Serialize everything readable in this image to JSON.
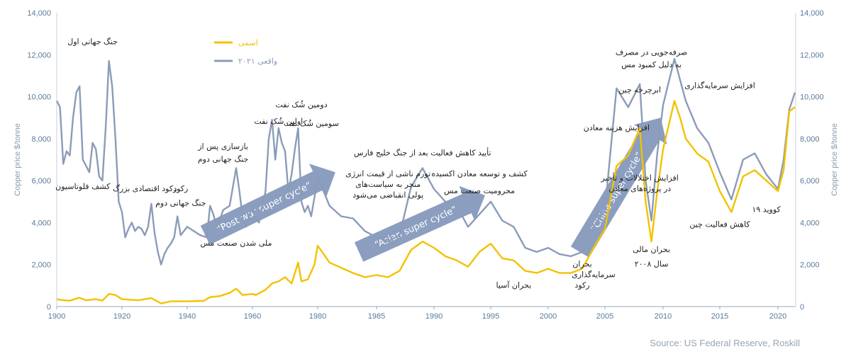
{
  "chart_data": {
    "type": "line",
    "ylabel_left": "Copper price $/tonne",
    "ylabel_right": "Copper price $/tonne",
    "xlim": [
      1900,
      2022
    ],
    "ylim": [
      0,
      14000
    ],
    "grid": false,
    "legend_position": "top-left",
    "x_ticks": [
      "1900",
      "1920",
      "1940",
      "1960",
      "1980",
      "1985",
      "1990",
      "1995",
      "2000",
      "2005",
      "2010",
      "2015",
      "2020"
    ],
    "y_ticks": [
      "0",
      "2,000",
      "4,000",
      "6,000",
      "8,000",
      "10,000",
      "12,000",
      "14,000"
    ],
    "series": [
      {
        "name": "اسمی",
        "color": "#f2c200",
        "points": [
          [
            1900,
            350
          ],
          [
            1902,
            300
          ],
          [
            1904,
            280
          ],
          [
            1906,
            380
          ],
          [
            1907,
            420
          ],
          [
            1909,
            300
          ],
          [
            1912,
            350
          ],
          [
            1914,
            280
          ],
          [
            1916,
            600
          ],
          [
            1918,
            550
          ],
          [
            1920,
            350
          ],
          [
            1925,
            300
          ],
          [
            1929,
            400
          ],
          [
            1932,
            150
          ],
          [
            1935,
            250
          ],
          [
            1940,
            250
          ],
          [
            1945,
            270
          ],
          [
            1947,
            450
          ],
          [
            1950,
            500
          ],
          [
            1953,
            650
          ],
          [
            1955,
            850
          ],
          [
            1957,
            550
          ],
          [
            1960,
            600
          ],
          [
            1961,
            550
          ],
          [
            1964,
            800
          ],
          [
            1966,
            1100
          ],
          [
            1968,
            1200
          ],
          [
            1970,
            1400
          ],
          [
            1972,
            1100
          ],
          [
            1973,
            1600
          ],
          [
            1974,
            2100
          ],
          [
            1975,
            1200
          ],
          [
            1977,
            1300
          ],
          [
            1979,
            2000
          ],
          [
            1980,
            2900
          ],
          [
            1981,
            2100
          ],
          [
            1983,
            1600
          ],
          [
            1984,
            1400
          ],
          [
            1985,
            1500
          ],
          [
            1986,
            1400
          ],
          [
            1987,
            1700
          ],
          [
            1988,
            2700
          ],
          [
            1989,
            3100
          ],
          [
            1990,
            2800
          ],
          [
            1991,
            2400
          ],
          [
            1992,
            2200
          ],
          [
            1993,
            1900
          ],
          [
            1994,
            2600
          ],
          [
            1995,
            3000
          ],
          [
            1996,
            2300
          ],
          [
            1997,
            2200
          ],
          [
            1998,
            1700
          ],
          [
            1999,
            1600
          ],
          [
            2000,
            1800
          ],
          [
            2001,
            1600
          ],
          [
            2002,
            1600
          ],
          [
            2003,
            1800
          ],
          [
            2004,
            2800
          ],
          [
            2005,
            3700
          ],
          [
            2006,
            6700
          ],
          [
            2007,
            7200
          ],
          [
            2008,
            8500
          ],
          [
            2008.5,
            5000
          ],
          [
            2009,
            3100
          ],
          [
            2009.5,
            5500
          ],
          [
            2010,
            7500
          ],
          [
            2011,
            9800
          ],
          [
            2011.5,
            9000
          ],
          [
            2012,
            8000
          ],
          [
            2013,
            7300
          ],
          [
            2014,
            6900
          ],
          [
            2015,
            5500
          ],
          [
            2016,
            4500
          ],
          [
            2017,
            6200
          ],
          [
            2018,
            6500
          ],
          [
            2019,
            6000
          ],
          [
            2020,
            5500
          ],
          [
            2020.5,
            6500
          ],
          [
            2021,
            9300
          ],
          [
            2021.5,
            9500
          ]
        ]
      },
      {
        "name": "واقعی ۲۰۲۱",
        "color": "#8b9cb8",
        "points": [
          [
            1900,
            9800
          ],
          [
            1901,
            9500
          ],
          [
            1902,
            6800
          ],
          [
            1903,
            7400
          ],
          [
            1904,
            7200
          ],
          [
            1905,
            9000
          ],
          [
            1906,
            10200
          ],
          [
            1907,
            10500
          ],
          [
            1908,
            7000
          ],
          [
            1910,
            6400
          ],
          [
            1911,
            7800
          ],
          [
            1912,
            7500
          ],
          [
            1913,
            6200
          ],
          [
            1914,
            6000
          ],
          [
            1915,
            8500
          ],
          [
            1916,
            11700
          ],
          [
            1917,
            10500
          ],
          [
            1918,
            8000
          ],
          [
            1919,
            5000
          ],
          [
            1920,
            4500
          ],
          [
            1921,
            3300
          ],
          [
            1922,
            3700
          ],
          [
            1923,
            4000
          ],
          [
            1924,
            3600
          ],
          [
            1925,
            3800
          ],
          [
            1926,
            3700
          ],
          [
            1927,
            3400
          ],
          [
            1928,
            3800
          ],
          [
            1929,
            4900
          ],
          [
            1930,
            3500
          ],
          [
            1931,
            2600
          ],
          [
            1932,
            2000
          ],
          [
            1933,
            2500
          ],
          [
            1934,
            2800
          ],
          [
            1935,
            3000
          ],
          [
            1936,
            3300
          ],
          [
            1937,
            4300
          ],
          [
            1938,
            3400
          ],
          [
            1940,
            3800
          ],
          [
            1942,
            3600
          ],
          [
            1944,
            3400
          ],
          [
            1946,
            3300
          ],
          [
            1947,
            4800
          ],
          [
            1948,
            4400
          ],
          [
            1949,
            3800
          ],
          [
            1950,
            4100
          ],
          [
            1951,
            4600
          ],
          [
            1953,
            4800
          ],
          [
            1955,
            6600
          ],
          [
            1956,
            5500
          ],
          [
            1957,
            4200
          ],
          [
            1958,
            3800
          ],
          [
            1960,
            4800
          ],
          [
            1961,
            4200
          ],
          [
            1962,
            4000
          ],
          [
            1964,
            5500
          ],
          [
            1965,
            8000
          ],
          [
            1966,
            8900
          ],
          [
            1967,
            7000
          ],
          [
            1968,
            8500
          ],
          [
            1969,
            7800
          ],
          [
            1970,
            7400
          ],
          [
            1971,
            5500
          ],
          [
            1972,
            6300
          ],
          [
            1973,
            7500
          ],
          [
            1974,
            8500
          ],
          [
            1975,
            5000
          ],
          [
            1976,
            4500
          ],
          [
            1977,
            4800
          ],
          [
            1978,
            4300
          ],
          [
            1979,
            5200
          ],
          [
            1980,
            6200
          ],
          [
            1981,
            4800
          ],
          [
            1982,
            4300
          ],
          [
            1983,
            4200
          ],
          [
            1984,
            3600
          ],
          [
            1985,
            3300
          ],
          [
            1986,
            3100
          ],
          [
            1987,
            3400
          ],
          [
            1988,
            5700
          ],
          [
            1989,
            6600
          ],
          [
            1990,
            5600
          ],
          [
            1991,
            5000
          ],
          [
            1992,
            4800
          ],
          [
            1993,
            3800
          ],
          [
            1994,
            4400
          ],
          [
            1995,
            5000
          ],
          [
            1996,
            4100
          ],
          [
            1997,
            3800
          ],
          [
            1998,
            2800
          ],
          [
            1999,
            2600
          ],
          [
            2000,
            2800
          ],
          [
            2001,
            2500
          ],
          [
            2002,
            2400
          ],
          [
            2003,
            2600
          ],
          [
            2004,
            3800
          ],
          [
            2005,
            4600
          ],
          [
            2006,
            10400
          ],
          [
            2007,
            9500
          ],
          [
            2008,
            10600
          ],
          [
            2008.5,
            6000
          ],
          [
            2009,
            4100
          ],
          [
            2009.5,
            7300
          ],
          [
            2010,
            9600
          ],
          [
            2011,
            11800
          ],
          [
            2011.5,
            10800
          ],
          [
            2012,
            9800
          ],
          [
            2013,
            8500
          ],
          [
            2014,
            7800
          ],
          [
            2015,
            6400
          ],
          [
            2016,
            5100
          ],
          [
            2017,
            7000
          ],
          [
            2018,
            7300
          ],
          [
            2019,
            6300
          ],
          [
            2020,
            5600
          ],
          [
            2020.5,
            7000
          ],
          [
            2021,
            9400
          ],
          [
            2021.5,
            10200
          ]
        ]
      }
    ],
    "annotations": [
      {
        "x": 1911,
        "y": 12500,
        "text": "جنگ جهانی اول"
      },
      {
        "x": 1908,
        "y": 5600,
        "text": "کشف فلوتاسیون"
      },
      {
        "x": 1927,
        "y": 5500,
        "text": "رکود اقتصادی بزرگ"
      },
      {
        "x": 1938,
        "y": 5500,
        "text": "رکود"
      },
      {
        "x": 1938,
        "y": 4800,
        "text": "جنگ جهانی دوم"
      },
      {
        "x": 1951,
        "y": 7500,
        "text": "بازسازی پس از"
      },
      {
        "x": 1951,
        "y": 6900,
        "text": "جنگ جهانی دوم"
      },
      {
        "x": 1955,
        "y": 2900,
        "text": "ملی شدن صنعت مس"
      },
      {
        "x": 1968,
        "y": 8700,
        "text": "اولین شُک نفت"
      },
      {
        "x": 1975,
        "y": 9500,
        "text": "دومین شُک نفت"
      },
      {
        "x": 1978,
        "y": 8600,
        "text": "سومین شُک نفت"
      },
      {
        "x": 1986,
        "y": 6200,
        "text": "تورم ناشی از قیمت انرژی"
      },
      {
        "x": 1986,
        "y": 5700,
        "text": "منجر به سیاست‌های"
      },
      {
        "x": 1986,
        "y": 5200,
        "text": "پولی انقباضی می‌شود"
      },
      {
        "x": 1989,
        "y": 7200,
        "text": "تأیید کاهش فعالیت بعد از جنگ خلیج فارس"
      },
      {
        "x": 1994,
        "y": 6200,
        "text": "کشف و توسعه معادن اکسیده"
      },
      {
        "x": 1994,
        "y": 5400,
        "text": "محرومیت صنعت مس"
      },
      {
        "x": 1997,
        "y": 900,
        "text": "بحران آسیا"
      },
      {
        "x": 2003,
        "y": 900,
        "text": "رکود"
      },
      {
        "x": 2003,
        "y": 1900,
        "text": "بحران"
      },
      {
        "x": 2004,
        "y": 1400,
        "text": "سرمایه‌گذاری"
      },
      {
        "x": 2008,
        "y": 6000,
        "text": "افزایش اختلالات و تأخیر"
      },
      {
        "x": 2008,
        "y": 5500,
        "text": "در پروژه‌های معادن"
      },
      {
        "x": 2006,
        "y": 8400,
        "text": "افزایش هزینه معادن"
      },
      {
        "x": 2008,
        "y": 10200,
        "text": "ابرچرخه چین"
      },
      {
        "x": 2009,
        "y": 12000,
        "text": "صرفه‌جویی در مصرف"
      },
      {
        "x": 2009,
        "y": 11400,
        "text": "به دلیل کمبود مس"
      },
      {
        "x": 2009,
        "y": 2600,
        "text": "بحران مالی"
      },
      {
        "x": 2009,
        "y": 1900,
        "text": "سال ۲۰۰۸"
      },
      {
        "x": 2015,
        "y": 10400,
        "text": "افزایش سرمایه‌گذاری"
      },
      {
        "x": 2015,
        "y": 3800,
        "text": "کاهش فعالیت چین"
      },
      {
        "x": 2019,
        "y": 4500,
        "text": "کووید ۱۹"
      }
    ],
    "bands": [
      {
        "label": "“Post war super cycle”"
      },
      {
        "label": "“Asian super cycle”"
      },
      {
        "label": "“China super cycle”"
      }
    ]
  },
  "source": "Source: US Federal Reserve, Roskill"
}
